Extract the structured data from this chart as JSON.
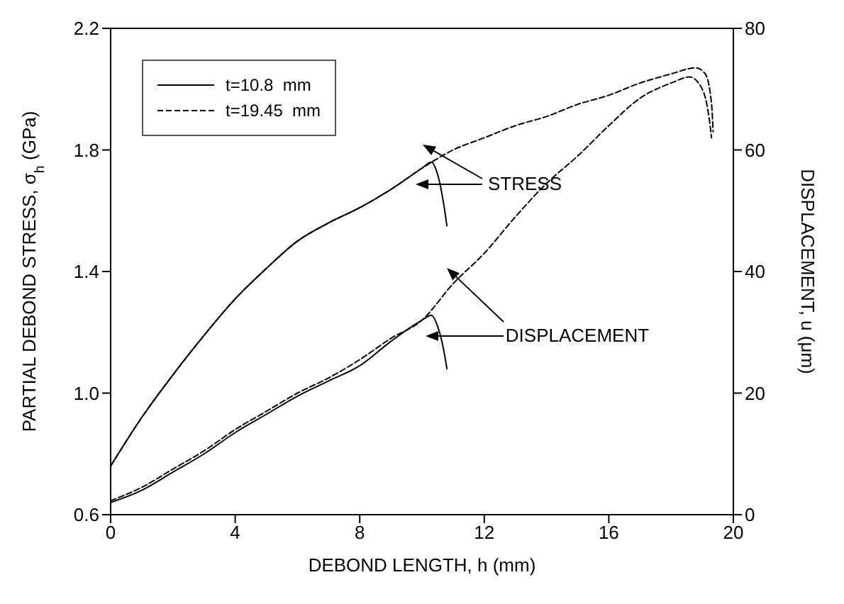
{
  "chart_data": {
    "type": "line",
    "xlabel": "DEBOND LENGTH, h (mm)",
    "ylabel": "PARTIAL DEBOND STRESS, σ$_{h}$ (GPa)",
    "y2label": "DISPLACEMENT, u (μm)",
    "xlim": [
      0,
      20
    ],
    "xticks": [
      0,
      4,
      8,
      12,
      16,
      20
    ],
    "ylim": [
      0.6,
      2.2
    ],
    "yticks": [
      0.6,
      {
        "value": 1,
        "label": "1.0"
      },
      1.4,
      1.8,
      2.2
    ],
    "y2lim": [
      0,
      80
    ],
    "y2ticks": [
      0,
      20,
      40,
      60,
      80
    ],
    "grid": false,
    "legend": "top left",
    "marker": "none",
    "series": [
      {
        "name": "t=10.8  mm",
        "color": "#000000",
        "line_style": "solid",
        "x": [
          0,
          1,
          2,
          3,
          4,
          5,
          6,
          7,
          8,
          9,
          10,
          10.3,
          10.5,
          10.7,
          10.8
        ],
        "values": [
          0.76,
          0.92,
          1.06,
          1.19,
          1.31,
          1.41,
          1.5,
          1.56,
          1.61,
          1.67,
          1.74,
          1.76,
          1.72,
          1.62,
          1.55
        ]
      },
      {
        "name": "t=19.45  mm",
        "color": "#000000",
        "line_style": "dashed",
        "x": [
          0,
          1,
          2,
          3,
          4,
          5,
          6,
          7,
          8,
          9,
          10,
          11,
          12,
          13,
          14,
          15,
          16,
          17,
          18,
          18.8,
          19.1,
          19.3,
          19.35
        ],
        "values": [
          0.76,
          0.92,
          1.06,
          1.19,
          1.31,
          1.41,
          1.5,
          1.56,
          1.61,
          1.67,
          1.74,
          1.8,
          1.84,
          1.88,
          1.91,
          1.95,
          1.98,
          2.02,
          2.05,
          2.07,
          2.05,
          1.95,
          1.86
        ]
      },
      {
        "color": "#000000",
        "line_style": "solid",
        "axis": "y2",
        "x": [
          0,
          1,
          2,
          3,
          4,
          5,
          6,
          7,
          8,
          9,
          10,
          10.3,
          10.5,
          10.7,
          10.8
        ],
        "values": [
          2,
          4,
          7,
          10,
          13.5,
          16.5,
          19.5,
          22,
          24.5,
          28.5,
          32,
          32.8,
          31,
          27,
          24
        ]
      },
      {
        "color": "#000000",
        "line_style": "dashed",
        "axis": "y2",
        "x": [
          0,
          1,
          2,
          3,
          4,
          5,
          6,
          7,
          8,
          9,
          10,
          11,
          12,
          13,
          14,
          15,
          16,
          17,
          18,
          18.6,
          19,
          19.2,
          19.3
        ],
        "values": [
          2.3,
          4.5,
          7.5,
          10.5,
          14,
          17,
          20,
          22.5,
          25.5,
          29,
          32,
          38,
          43,
          49,
          54.5,
          59,
          64,
          68.5,
          71,
          72,
          70,
          66,
          62
        ]
      }
    ],
    "annotations": [
      "STRESS",
      "DISPLACEMENT"
    ]
  }
}
